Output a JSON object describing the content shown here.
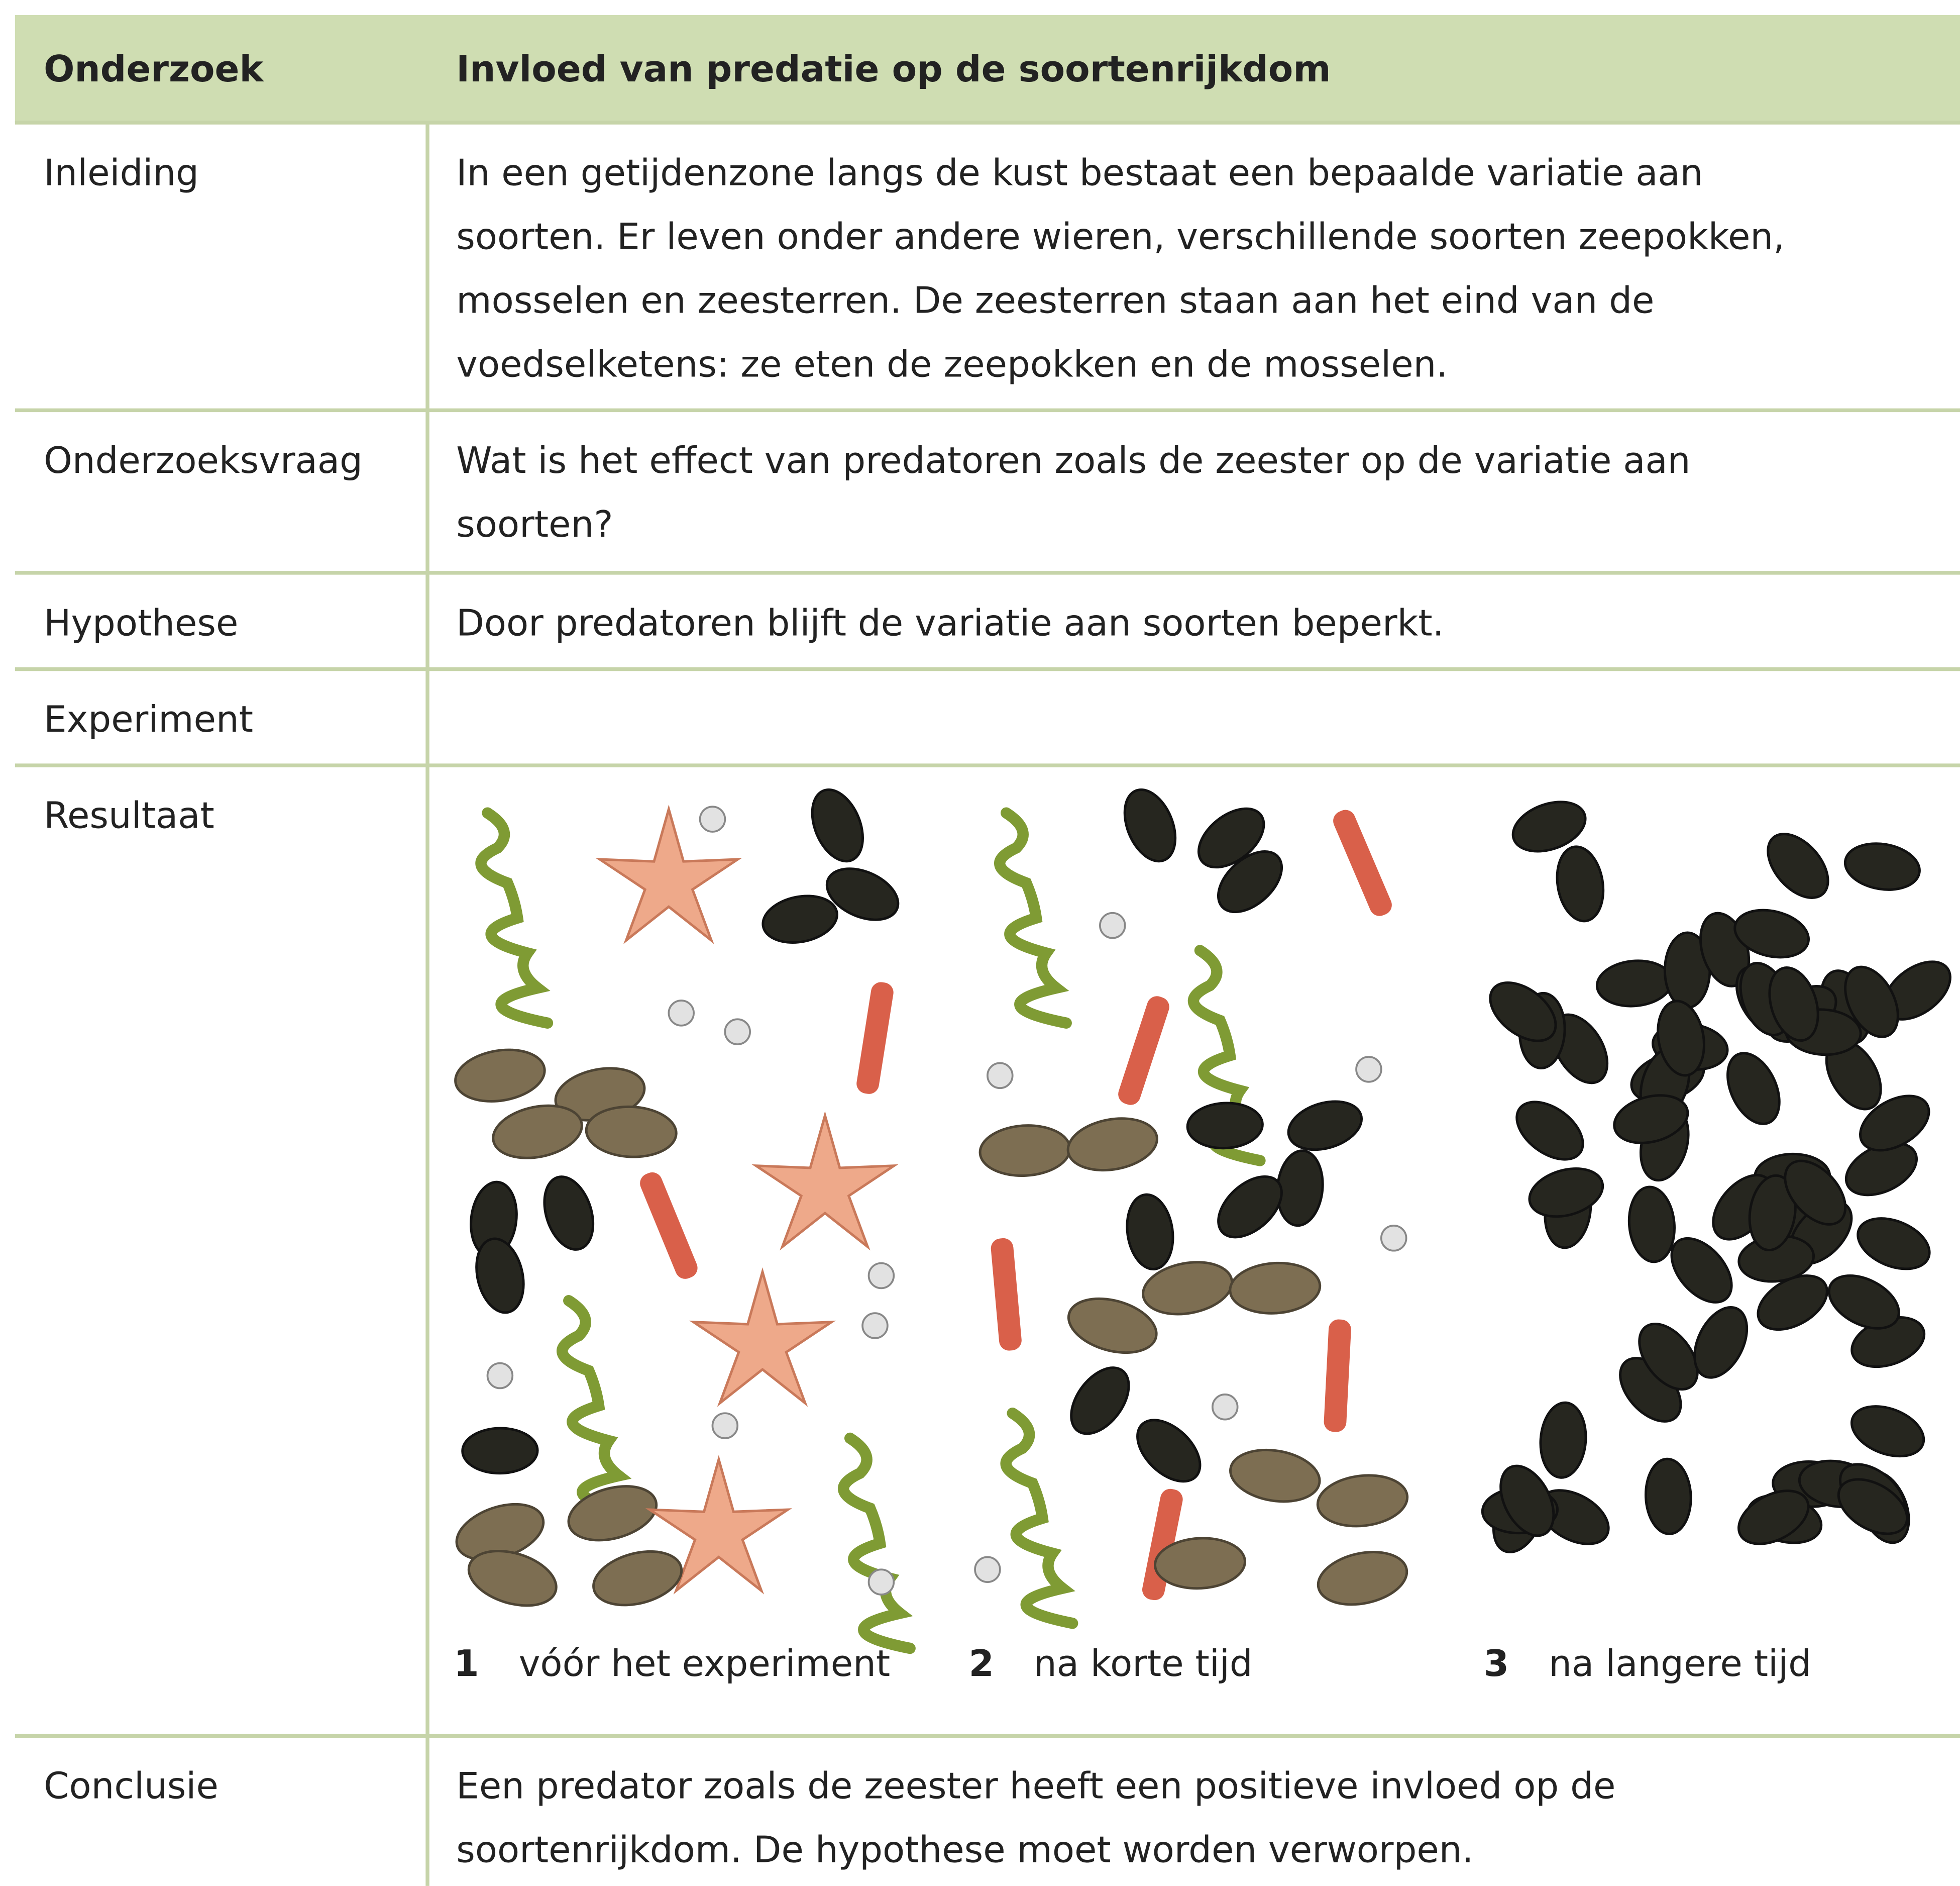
{
  "header": {
    "col1": "Onderzoek",
    "col2": "Invloed van predatie op de soortenrijkdom"
  },
  "rows": [
    {
      "label": "Inleiding",
      "text": [
        "In een getijdenzone langs de kust bestaat een bepaalde variatie aan",
        "soorten. Er leven onder andere wieren, verschillende soorten zeepokken,",
        "mosselen en zeesterren. De zeesterren staan aan het eind van de",
        "voedselketens: ze eten de zeepokken en de mosselen."
      ]
    },
    {
      "label": "Onderzoeksvraag",
      "text": [
        "Wat is het effect van predatoren zoals de zeester op de variatie aan",
        "soorten?"
      ]
    },
    {
      "label": "Hypothese",
      "text": [
        "Door predatoren blijft de variatie aan soorten beperkt."
      ]
    },
    {
      "label": "Experiment",
      "text": []
    },
    {
      "label": "Resultaat",
      "panels": [
        {
          "number": "1",
          "caption": "vóór het experiment"
        },
        {
          "number": "2",
          "caption": "na korte tijd"
        },
        {
          "number": "3",
          "caption": "na langere tijd"
        }
      ]
    },
    {
      "label": "Conclusie",
      "text": [
        "Een predator zoals de zeester heeft een positieve invloed op de",
        "soortenrijkdom. De hypothese moet worden verworpen."
      ]
    }
  ]
}
